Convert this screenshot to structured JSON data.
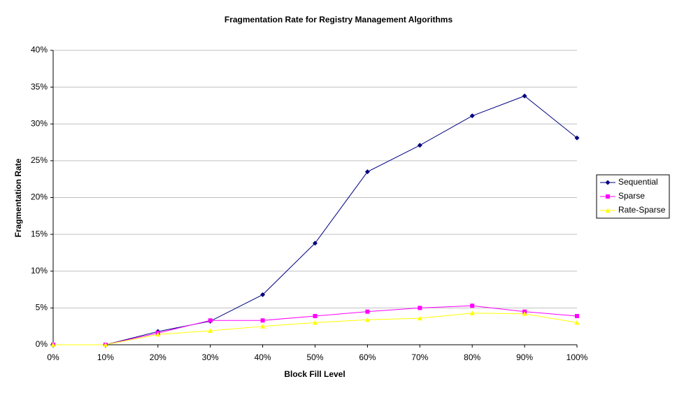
{
  "chart_data": {
    "type": "line",
    "title": "Fragmentation Rate for Registry Management Algorithms",
    "x_label": "Block Fill Level",
    "y_label": "Fragmentation Rate",
    "x": [
      0,
      10,
      20,
      30,
      40,
      50,
      60,
      70,
      80,
      90,
      100
    ],
    "xlim": [
      0,
      100
    ],
    "xticks": [
      {
        "value": 0,
        "label": "0%"
      },
      {
        "value": 10,
        "label": "10%"
      },
      {
        "value": 20,
        "label": "20%"
      },
      {
        "value": 30,
        "label": "30%"
      },
      {
        "value": 40,
        "label": "40%"
      },
      {
        "value": 50,
        "label": "50%"
      },
      {
        "value": 60,
        "label": "60%"
      },
      {
        "value": 70,
        "label": "70%"
      },
      {
        "value": 80,
        "label": "80%"
      },
      {
        "value": 90,
        "label": "90%"
      },
      {
        "value": 100,
        "label": "100%"
      }
    ],
    "ylim": [
      0,
      40
    ],
    "yticks": [
      {
        "value": 0,
        "label": "0%"
      },
      {
        "value": 5,
        "label": "5%"
      },
      {
        "value": 10,
        "label": "10%"
      },
      {
        "value": 15,
        "label": "15%"
      },
      {
        "value": 20,
        "label": "20%"
      },
      {
        "value": 25,
        "label": "25%"
      },
      {
        "value": 30,
        "label": "30%"
      },
      {
        "value": 35,
        "label": "35%"
      },
      {
        "value": 40,
        "label": "40%"
      }
    ],
    "grid": true,
    "legend": "right",
    "series": [
      {
        "name": "Sequential",
        "color": "#000080",
        "marker": "diamond",
        "values": [
          0,
          0,
          1.8,
          3.2,
          6.8,
          13.8,
          23.5,
          27.1,
          31.1,
          33.8,
          28.1
        ]
      },
      {
        "name": "Sparse",
        "color": "#ff00ff",
        "marker": "square",
        "values": [
          0,
          0,
          1.6,
          3.3,
          3.3,
          3.9,
          4.5,
          5.0,
          5.3,
          4.5,
          3.9
        ]
      },
      {
        "name": "Rate-Sparse",
        "color": "#ffff00",
        "marker": "triangle",
        "values": [
          0,
          0,
          1.4,
          1.9,
          2.5,
          3.0,
          3.4,
          3.6,
          4.3,
          4.2,
          3.0
        ]
      }
    ]
  }
}
